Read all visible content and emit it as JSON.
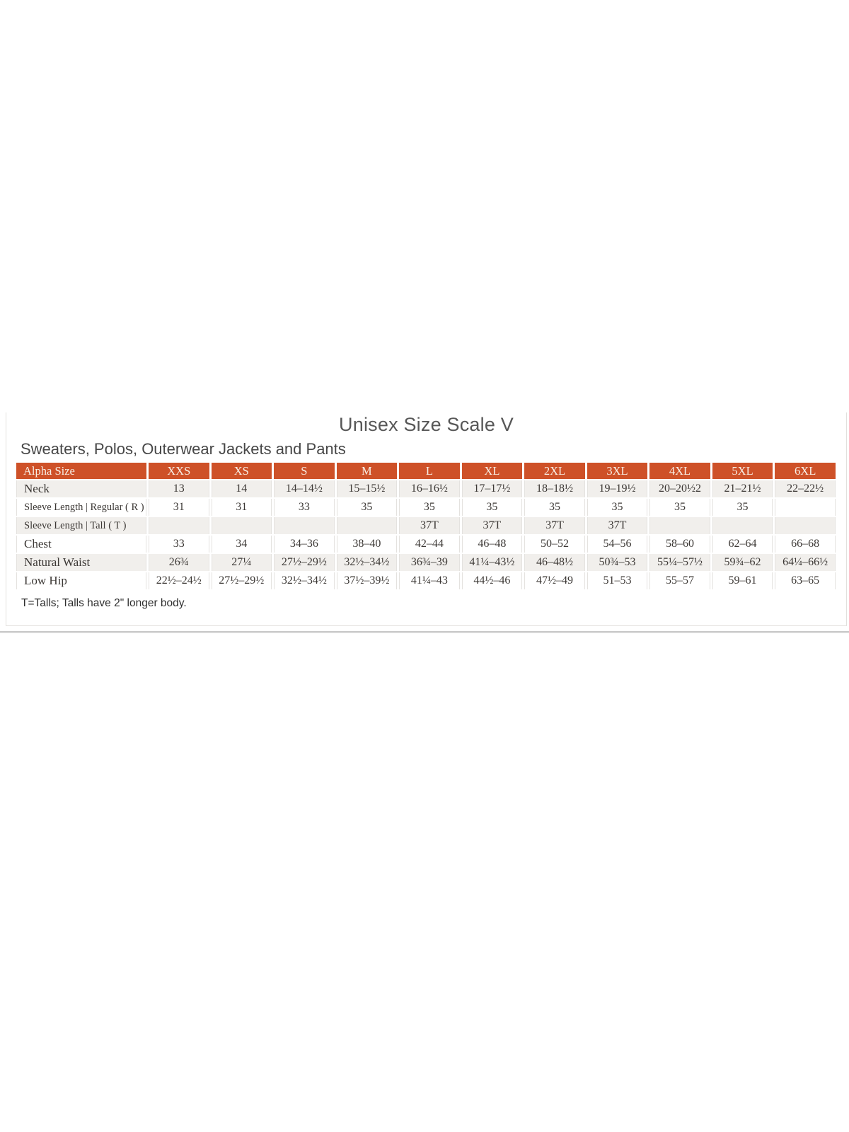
{
  "page": {
    "title": "Unisex Size Scale V",
    "subtitle": "Sweaters, Polos, Outerwear Jackets and Pants",
    "footnote": "T=Talls; Talls have 2\" longer body."
  },
  "colors": {
    "header_bg": "#CE5128",
    "header_text": "#F8EFE5",
    "row_alt_bg": "#F1EFEC",
    "row_bg": "#FFFFFF",
    "body_text": "#3C3835",
    "panel_border": "#E2E0DD",
    "divider": "#C9C9C9"
  },
  "table": {
    "header": [
      "Alpha Size",
      "XXS",
      "XS",
      "S",
      "M",
      "L",
      "XL",
      "2XL",
      "3XL",
      "4XL",
      "5XL",
      "6XL"
    ],
    "rows": [
      {
        "label": "Neck",
        "small": false,
        "values": [
          "13",
          "14",
          "14–14½",
          "15–15½",
          "16–16½",
          "17–17½",
          "18–18½",
          "19–19½",
          "20–20½2",
          "21–21½",
          "22–22½"
        ]
      },
      {
        "label": "Sleeve Length | Regular ( R )",
        "small": true,
        "values": [
          "31",
          "31",
          "33",
          "35",
          "35",
          "35",
          "35",
          "35",
          "35",
          "35",
          ""
        ]
      },
      {
        "label": "Sleeve Length | Tall ( T )",
        "small": true,
        "values": [
          "",
          "",
          "",
          "",
          "37T",
          "37T",
          "37T",
          "37T",
          "",
          "",
          ""
        ]
      },
      {
        "label": "Chest",
        "small": false,
        "values": [
          "33",
          "34",
          "34–36",
          "38–40",
          "42–44",
          "46–48",
          "50–52",
          "54–56",
          "58–60",
          "62–64",
          "66–68"
        ]
      },
      {
        "label": "Natural Waist",
        "small": false,
        "values": [
          "26¾",
          "27¼",
          "27½–29½",
          "32½–34½",
          "36¾–39",
          "41¼–43½",
          "46–48½",
          "50¾–53",
          "55¼–57½",
          "59¾–62",
          "64¼–66½"
        ]
      },
      {
        "label": "Low Hip",
        "small": false,
        "values": [
          "22½–24½",
          "27½–29½",
          "32½–34½",
          "37½–39½",
          "41¼–43",
          "44½–46",
          "47½–49",
          "51–53",
          "55–57",
          "59–61",
          "63–65"
        ]
      }
    ]
  }
}
